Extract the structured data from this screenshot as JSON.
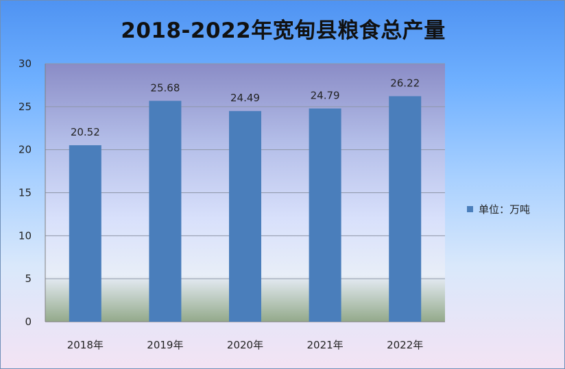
{
  "chart_data": {
    "type": "bar",
    "title": "2018-2022年宽甸县粮食总产量",
    "categories": [
      "2018年",
      "2019年",
      "2020年",
      "2021年",
      "2022年"
    ],
    "series": [
      {
        "name": "单位：万吨",
        "values": [
          20.52,
          25.68,
          24.49,
          24.79,
          26.22
        ],
        "color": "#4a7ebb"
      }
    ],
    "data_labels": [
      "20.52",
      "25.68",
      "24.49",
      "24.79",
      "26.22"
    ],
    "ylim": [
      0,
      30
    ],
    "yticks": [
      0,
      5,
      10,
      15,
      20,
      25,
      30
    ],
    "grid": true,
    "legend_position": "right"
  }
}
